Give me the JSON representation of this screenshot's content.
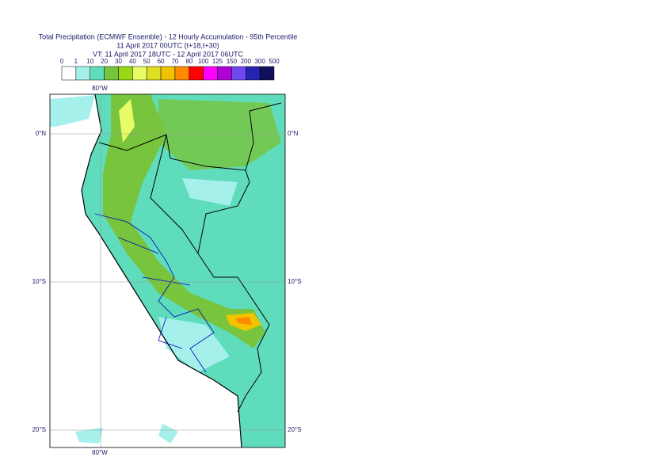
{
  "header": {
    "title": "Total Precipitation (ECMWF Ensemble) - 12 Hourly Accumulation - 95th Percentile",
    "base_time": "11 April 2017 00UTC (t+18,t+30)",
    "valid_time": "VT: 11 April 2017 18UTC - 12 April 2017 06UTC"
  },
  "legend": {
    "labels": [
      "0",
      "1",
      "10",
      "20",
      "30",
      "40",
      "50",
      "60",
      "70",
      "80",
      "100",
      "125",
      "150",
      "200",
      "300",
      "500"
    ],
    "colors": [
      "#ffffff",
      "#a6f0ec",
      "#5fdcbc",
      "#78c43c",
      "#98d818",
      "#e8fc68",
      "#dede22",
      "#f2c400",
      "#ff8a00",
      "#ff0000",
      "#ff00ff",
      "#b000d4",
      "#7048f0",
      "#2424b0",
      "#10105a"
    ]
  },
  "map": {
    "lon_top": "80°W",
    "lon_bottom": "80°W",
    "lat_left": [
      "0°N",
      "10°S",
      "20°S"
    ],
    "lat_right": [
      "0°N",
      "10°S",
      "20°S"
    ]
  }
}
